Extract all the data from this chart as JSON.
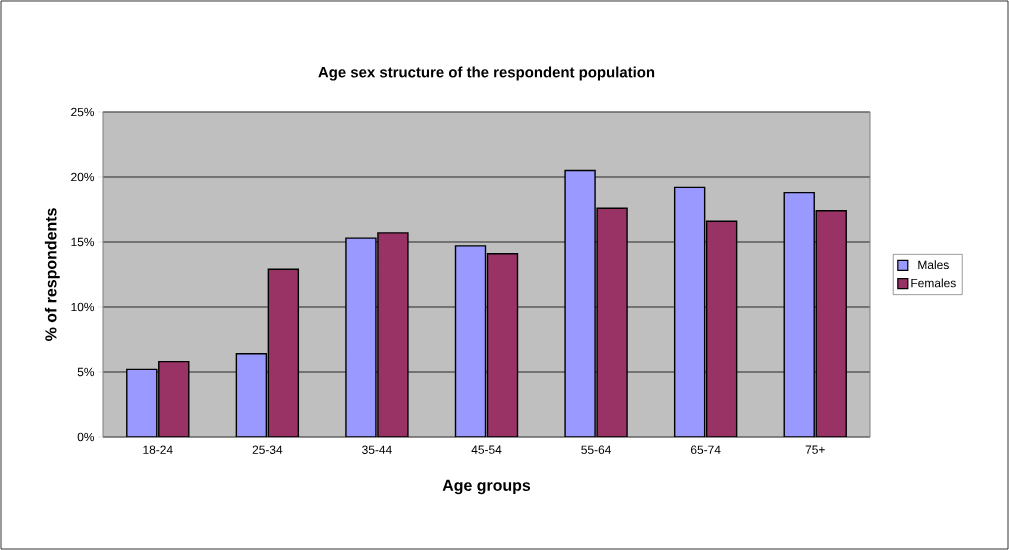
{
  "chart_data": {
    "type": "bar",
    "title": "Age sex structure of the respondent population",
    "xlabel": "Age groups",
    "ylabel": "% of respondents",
    "categories": [
      "18-24",
      "25-34",
      "35-44",
      "45-54",
      "55-64",
      "65-74",
      "75+"
    ],
    "series": [
      {
        "name": "Males",
        "color": "#9999ff",
        "values": [
          5.2,
          6.4,
          15.3,
          14.7,
          20.5,
          19.2,
          18.8
        ]
      },
      {
        "name": "Females",
        "color": "#993366",
        "values": [
          5.8,
          12.9,
          15.7,
          14.1,
          17.6,
          16.6,
          17.4
        ]
      }
    ],
    "ylim": [
      0,
      25
    ],
    "yticks": [
      {
        "value": 0,
        "label": "0%"
      },
      {
        "value": 5,
        "label": "5%"
      },
      {
        "value": 10,
        "label": "10%"
      },
      {
        "value": 15,
        "label": "15%"
      },
      {
        "value": 20,
        "label": "20%"
      },
      {
        "value": 25,
        "label": "25%"
      }
    ],
    "grid": "y",
    "legend": "right"
  }
}
